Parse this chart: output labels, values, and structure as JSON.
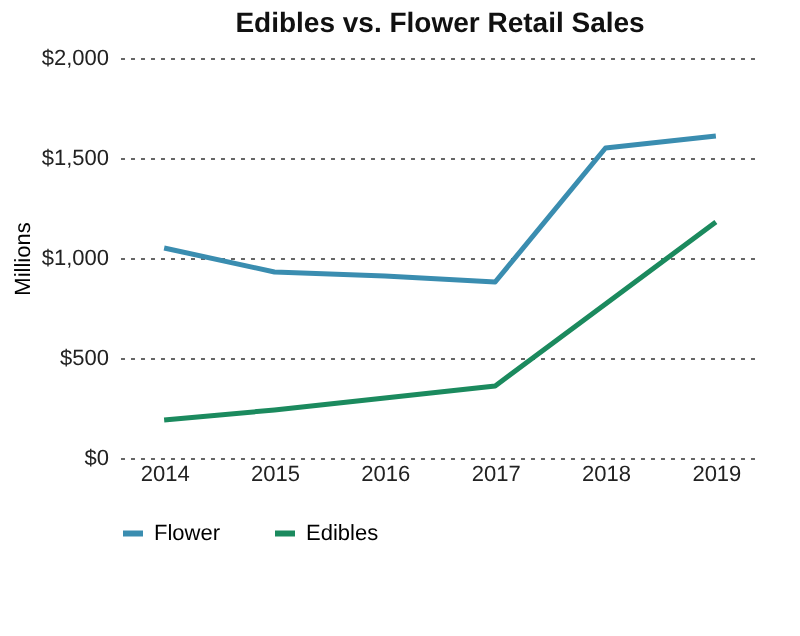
{
  "chart_data": {
    "type": "line",
    "title": "Edibles vs. Flower Retail Sales",
    "ylabel": "Millions",
    "categories": [
      "2014",
      "2015",
      "2016",
      "2017",
      "2018",
      "2019"
    ],
    "series": [
      {
        "name": "Flower",
        "color": "#3a8db0",
        "values": [
          1050,
          930,
          910,
          880,
          1550,
          1610
        ]
      },
      {
        "name": "Edibles",
        "color": "#1b8a5e",
        "values": [
          190,
          240,
          300,
          360,
          770,
          1180
        ]
      }
    ],
    "ylim": [
      0,
      2000
    ],
    "yticks": [
      {
        "value": 0,
        "label": "$0"
      },
      {
        "value": 500,
        "label": "$500"
      },
      {
        "value": 1000,
        "label": "$1,000"
      },
      {
        "value": 1500,
        "label": "$1,500"
      },
      {
        "value": 2000,
        "label": "$2,000"
      }
    ],
    "grid": "y",
    "legend": "bottom",
    "marker": "none",
    "line_style": "solid"
  }
}
